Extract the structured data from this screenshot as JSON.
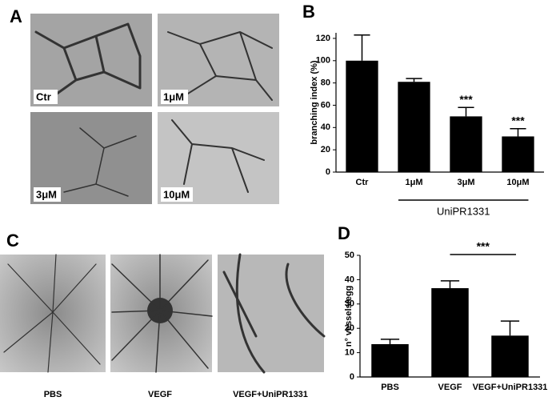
{
  "figure": {
    "panel_labels": [
      "A",
      "B",
      "C",
      "D"
    ],
    "panel_a_images": [
      "Ctr",
      "1μM",
      "3μM",
      "10μM"
    ],
    "panel_c_images": [
      "PBS",
      "VEGF",
      "VEGF+UniPR1331"
    ]
  },
  "chart_data": [
    {
      "type": "bar",
      "categories": [
        "Ctr",
        "1μM",
        "3μM",
        "10μM"
      ],
      "values": [
        100,
        81,
        50,
        32
      ],
      "errors": [
        23,
        3,
        8,
        7
      ],
      "value_annotations": [
        null,
        null,
        "***",
        "***"
      ],
      "group": {
        "label": "UniPR1331",
        "categories": [
          "1μM",
          "3μM",
          "10μM"
        ]
      },
      "y_label": "branching index (%)",
      "ylim": [
        0,
        125
      ],
      "yticks": [
        0,
        20,
        40,
        60,
        80,
        100,
        120
      ],
      "color": "#000000"
    },
    {
      "type": "bar",
      "categories": [
        "PBS",
        "VEGF",
        "VEGF+UniPR1331"
      ],
      "values": [
        13.5,
        36.5,
        17
      ],
      "errors": [
        2,
        3,
        6
      ],
      "significance": {
        "label": "***",
        "categories": [
          "VEGF",
          "VEGF+UniPR1331"
        ]
      },
      "y_label": "n° vessels/egg",
      "ylim": [
        0,
        50
      ],
      "yticks": [
        0,
        10,
        20,
        30,
        40,
        50
      ],
      "color": "#000000"
    }
  ]
}
